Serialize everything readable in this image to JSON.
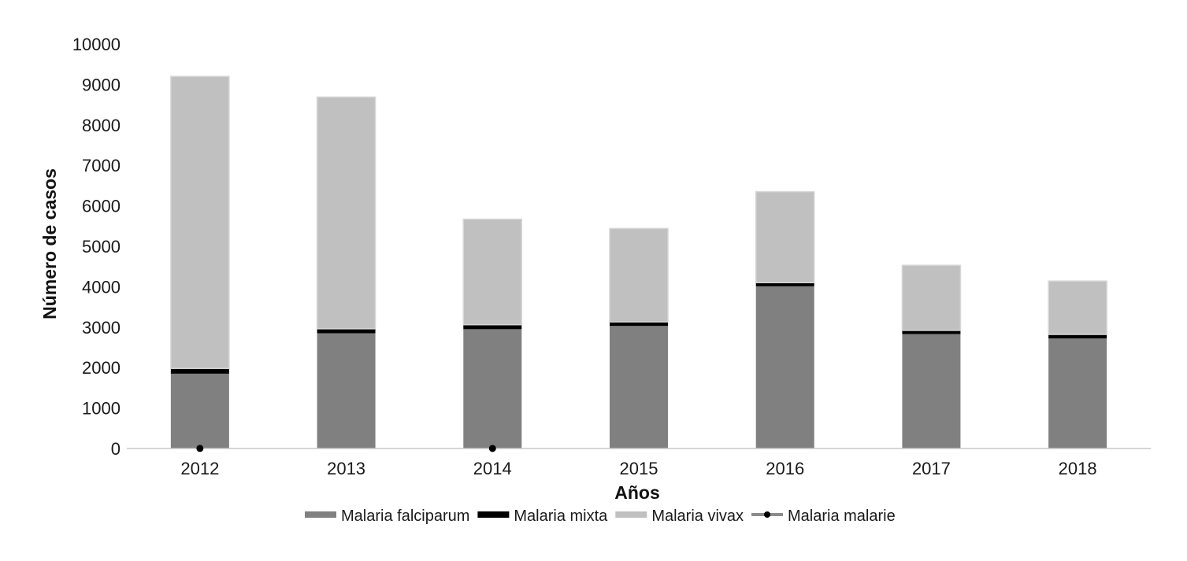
{
  "chart_data": {
    "type": "bar",
    "stacked": true,
    "title": "",
    "xlabel": "Años",
    "ylabel": "Número de casos",
    "ylim": [
      0,
      10000
    ],
    "yticks": [
      0,
      1000,
      2000,
      3000,
      4000,
      5000,
      6000,
      7000,
      8000,
      9000,
      10000
    ],
    "categories": [
      "2012",
      "2013",
      "2014",
      "2015",
      "2016",
      "2017",
      "2018"
    ],
    "series": [
      {
        "name": "Malaria falciparum",
        "type": "bar",
        "color": "#808080",
        "values": [
          1850,
          2850,
          2950,
          3030,
          4010,
          2830,
          2720
        ]
      },
      {
        "name": "Malaria mixta",
        "type": "bar",
        "color": "#000000",
        "values": [
          130,
          110,
          110,
          100,
          90,
          90,
          100
        ]
      },
      {
        "name": "Malaria vivax",
        "type": "bar",
        "color": "#c0c0c0",
        "values": [
          7220,
          5730,
          2610,
          2310,
          2250,
          1610,
          1320
        ]
      },
      {
        "name": "Malaria malarie",
        "type": "line-marker",
        "color": "#000000",
        "values": [
          2,
          0,
          1,
          0,
          0,
          0,
          0
        ]
      }
    ],
    "grid": false,
    "legend_position": "bottom"
  }
}
